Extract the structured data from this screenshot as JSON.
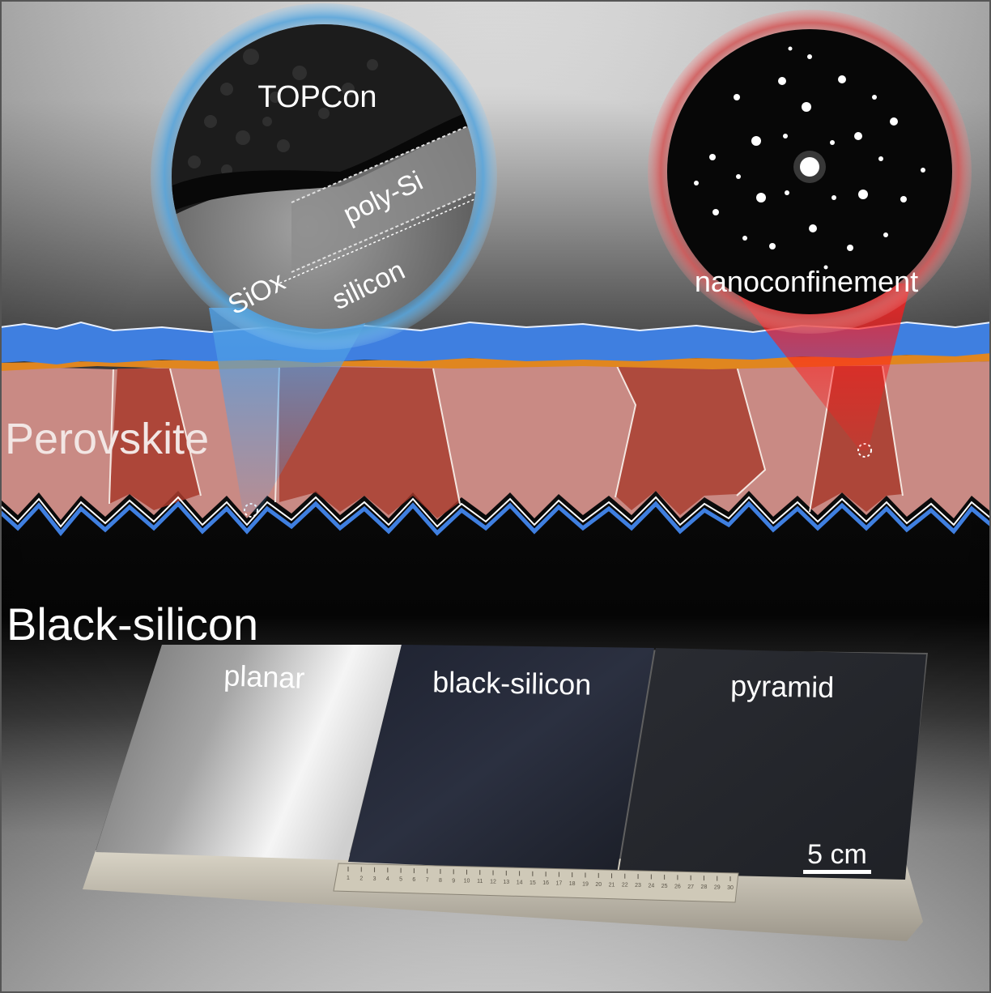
{
  "labels": {
    "topcon": "TOPCon",
    "poly_si": "poly-Si",
    "siox": "SiOx",
    "silicon": "silicon",
    "nanoconfinement": "nanoconfinement",
    "perovskite": "Perovskite",
    "black_silicon_heading": "Black-silicon"
  },
  "panels": [
    {
      "label": "planar",
      "finish": "reflective silver"
    },
    {
      "label": "black-silicon",
      "finish": "dark navy"
    },
    {
      "label": "pyramid",
      "finish": "dark grey"
    }
  ],
  "scale_bar": {
    "label": "5 cm"
  },
  "ruler": {
    "tick_numbers": [
      "1",
      "2",
      "3",
      "4",
      "5",
      "6",
      "7",
      "8",
      "9",
      "10",
      "11",
      "12",
      "13",
      "14",
      "15",
      "16",
      "17",
      "18",
      "19",
      "20",
      "21",
      "22",
      "23",
      "24",
      "25",
      "26",
      "27",
      "28",
      "29",
      "30"
    ]
  },
  "colors": {
    "blue_layer": "#3f7fe0",
    "orange_layer": "#e0861f",
    "perovskite_light": "#c98a84",
    "perovskite_dark": "#a8392c",
    "blue_halo": "#5aa6dc",
    "red_halo": "#d25c5c",
    "dark_band": "#0a0a0a"
  },
  "icons": {
    "diffraction_pattern": "electron-diffraction-spots",
    "tem_image": "cross-section-micrograph"
  }
}
